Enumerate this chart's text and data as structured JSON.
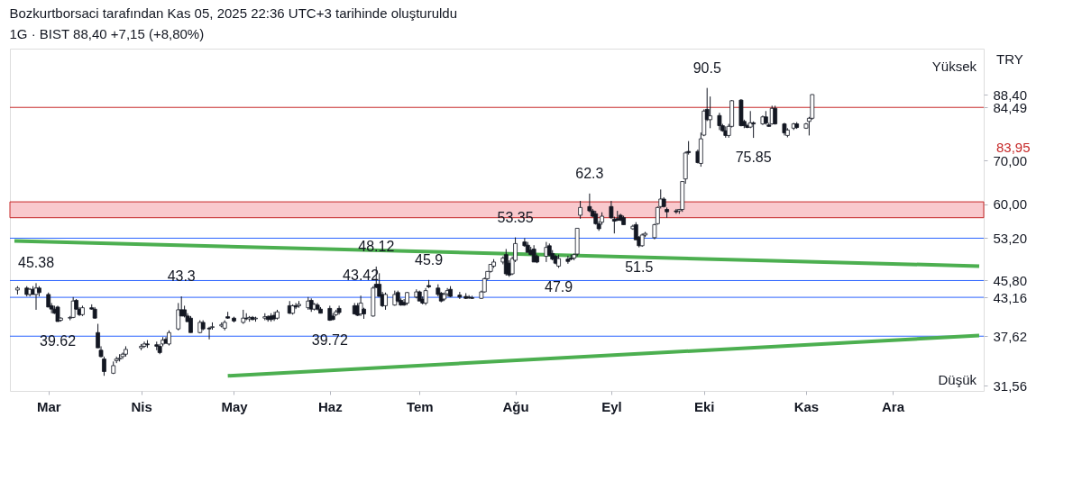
{
  "chart_data": {
    "type": "candlestick",
    "title": "Bozkurtborsaci tarafından Kas 05, 2025 22:36 UTC+3 tarihinde oluşturuldu",
    "subtitle": "1G · BIST  88,40  +7,15 (+8,80%)",
    "x": [
      "2025-02-21",
      "2025-02-24",
      "2025-02-25",
      "2025-02-26",
      "2025-02-27",
      "2025-02-28",
      "2025-03-03",
      "2025-03-04",
      "2025-03-05",
      "2025-03-06",
      "2025-03-07",
      "2025-03-10",
      "2025-03-11",
      "2025-03-12",
      "2025-03-13",
      "2025-03-14",
      "2025-03-17",
      "2025-03-18",
      "2025-03-19",
      "2025-03-20",
      "2025-03-21",
      "2025-03-24",
      "2025-03-25",
      "2025-03-26",
      "2025-03-27",
      "2025-03-28",
      "2025-04-02",
      "2025-04-03",
      "2025-04-04",
      "2025-04-07",
      "2025-04-08",
      "2025-04-09",
      "2025-04-10",
      "2025-04-11",
      "2025-04-14",
      "2025-04-15",
      "2025-04-16",
      "2025-04-17",
      "2025-04-18",
      "2025-04-21",
      "2025-04-22",
      "2025-04-24",
      "2025-04-25",
      "2025-04-28",
      "2025-04-29",
      "2025-04-30",
      "2025-05-02",
      "2025-05-05",
      "2025-05-06",
      "2025-05-07",
      "2025-05-08",
      "2025-05-09",
      "2025-05-12",
      "2025-05-13",
      "2025-05-14",
      "2025-05-15",
      "2025-05-16",
      "2025-05-20",
      "2025-05-21",
      "2025-05-22",
      "2025-05-23",
      "2025-05-26",
      "2025-05-27",
      "2025-05-28",
      "2025-05-29",
      "2025-05-30",
      "2025-06-02",
      "2025-06-03",
      "2025-06-04",
      "2025-06-05",
      "2025-06-10",
      "2025-06-11",
      "2025-06-12",
      "2025-06-13",
      "2025-06-16",
      "2025-06-17",
      "2025-06-18",
      "2025-06-19",
      "2025-06-20",
      "2025-06-23",
      "2025-06-24",
      "2025-06-25",
      "2025-06-26",
      "2025-06-27",
      "2025-06-30",
      "2025-07-01",
      "2025-07-02",
      "2025-07-03",
      "2025-07-04",
      "2025-07-07",
      "2025-07-08",
      "2025-07-09",
      "2025-07-10",
      "2025-07-11",
      "2025-07-14",
      "2025-07-16",
      "2025-07-17",
      "2025-07-18",
      "2025-07-21",
      "2025-07-22",
      "2025-07-23",
      "2025-07-24",
      "2025-07-25",
      "2025-07-28",
      "2025-07-29",
      "2025-07-30",
      "2025-07-31",
      "2025-08-01",
      "2025-08-04",
      "2025-08-05",
      "2025-08-06",
      "2025-08-07",
      "2025-08-08",
      "2025-08-11",
      "2025-08-12",
      "2025-08-13",
      "2025-08-14",
      "2025-08-15",
      "2025-08-18",
      "2025-08-19",
      "2025-08-20",
      "2025-08-21",
      "2025-08-22",
      "2025-08-25",
      "2025-08-26",
      "2025-08-27",
      "2025-08-28",
      "2025-08-29",
      "2025-09-01",
      "2025-09-02",
      "2025-09-03",
      "2025-09-04",
      "2025-09-05",
      "2025-09-08",
      "2025-09-09",
      "2025-09-10",
      "2025-09-11",
      "2025-09-12",
      "2025-09-15",
      "2025-09-16",
      "2025-09-17",
      "2025-09-18",
      "2025-09-19",
      "2025-09-22",
      "2025-09-23",
      "2025-09-24",
      "2025-09-25",
      "2025-09-26",
      "2025-09-29",
      "2025-09-30",
      "2025-10-01",
      "2025-10-02",
      "2025-10-03",
      "2025-10-06",
      "2025-10-07",
      "2025-10-08",
      "2025-10-09",
      "2025-10-10",
      "2025-10-13",
      "2025-10-14",
      "2025-10-15",
      "2025-10-16",
      "2025-10-17",
      "2025-10-20",
      "2025-10-21",
      "2025-10-22",
      "2025-10-23",
      "2025-10-24",
      "2025-10-27",
      "2025-10-28",
      "2025-10-30",
      "2025-10-31",
      "2025-11-03",
      "2025-11-04",
      "2025-11-05"
    ],
    "ohlc": [
      [
        44.3,
        44.9,
        43.6,
        44.6
      ],
      [
        44.6,
        44.9,
        43.3,
        43.6
      ],
      [
        43.6,
        44.6,
        43.3,
        44.4
      ],
      [
        44.4,
        44.9,
        43.6,
        43.6
      ],
      [
        43.6,
        45.38,
        41.3,
        44.6
      ],
      [
        44.6,
        44.9,
        43.3,
        43.9
      ],
      [
        43.6,
        43.9,
        41.7,
        41.7
      ],
      [
        41.9,
        42.3,
        40.8,
        41.4
      ],
      [
        41.4,
        41.9,
        40.7,
        40.8
      ],
      [
        41.7,
        41.9,
        39.62,
        39.62
      ],
      [
        39.8,
        40.2,
        39.6,
        40.1
      ],
      [
        40.1,
        40.4,
        39.8,
        40.2
      ],
      [
        40.2,
        43.2,
        40.1,
        42.6
      ],
      [
        42.7,
        42.9,
        41.3,
        41.4
      ],
      [
        41.4,
        41.7,
        40.4,
        40.6
      ],
      [
        40.6,
        41.9,
        40.4,
        41.6
      ],
      [
        41.6,
        42.1,
        41.3,
        41.4
      ],
      [
        41.4,
        41.7,
        40.0,
        40.1
      ],
      [
        38.1,
        39.3,
        36.1,
        36.1
      ],
      [
        35.8,
        36.3,
        34.9,
        35.0
      ],
      [
        34.7,
        35.0,
        32.7,
        33.2
      ],
      [
        33.0,
        34.4,
        32.9,
        33.9
      ],
      [
        34.5,
        35.0,
        34.2,
        34.7
      ],
      [
        34.7,
        35.3,
        34.4,
        34.8
      ],
      [
        35.0,
        35.5,
        34.7,
        35.3
      ],
      [
        35.3,
        36.3,
        35.0,
        35.9
      ],
      [
        36.1,
        36.6,
        35.8,
        36.3
      ],
      [
        36.3,
        36.9,
        36.1,
        36.6
      ],
      [
        36.6,
        37.1,
        36.1,
        36.5
      ],
      [
        36.5,
        36.9,
        35.8,
        36.3
      ],
      [
        36.3,
        36.6,
        35.3,
        35.5
      ],
      [
        36.6,
        37.5,
        36.3,
        37.1
      ],
      [
        37.2,
        37.5,
        36.6,
        36.7
      ],
      [
        36.6,
        38.4,
        36.4,
        38.1
      ],
      [
        38.6,
        42.3,
        38.4,
        41.3
      ],
      [
        41.3,
        43.3,
        40.4,
        40.4
      ],
      [
        41.3,
        41.9,
        40.2,
        40.4
      ],
      [
        40.4,
        40.8,
        39.6,
        39.6
      ],
      [
        40.1,
        40.4,
        38.1,
        38.1
      ],
      [
        38.1,
        39.8,
        38.0,
        39.5
      ],
      [
        39.5,
        39.8,
        38.4,
        38.6
      ],
      [
        38.7,
        38.9,
        37.2,
        38.6
      ],
      [
        38.8,
        39.5,
        38.5,
        38.9
      ],
      [
        39.0,
        39.5,
        38.8,
        39.2
      ],
      [
        38.7,
        39.8,
        38.4,
        39.5
      ],
      [
        40.3,
        41.0,
        40.0,
        40.1
      ],
      [
        40.1,
        40.3,
        39.5,
        39.7
      ],
      [
        39.5,
        41.3,
        39.3,
        40.1
      ],
      [
        40.1,
        40.8,
        39.8,
        40.0
      ],
      [
        40.0,
        40.4,
        39.6,
        40.2
      ],
      [
        40.2,
        40.4,
        39.8,
        39.9
      ],
      [
        40.0,
        40.3,
        39.6,
        40.1
      ],
      [
        40.1,
        40.8,
        39.8,
        40.3
      ],
      [
        40.3,
        40.5,
        39.6,
        39.9
      ],
      [
        40.4,
        40.8,
        39.6,
        39.9
      ],
      [
        40.5,
        41.0,
        39.7,
        40.0
      ],
      [
        40.1,
        41.3,
        39.9,
        41.0
      ],
      [
        41.9,
        42.6,
        40.7,
        40.8
      ],
      [
        40.8,
        42.1,
        40.6,
        41.9
      ],
      [
        41.9,
        42.3,
        41.4,
        41.7
      ],
      [
        41.9,
        42.6,
        41.6,
        42.1
      ],
      [
        41.6,
        43.2,
        41.3,
        42.6
      ],
      [
        42.7,
        43.0,
        41.0,
        41.4
      ],
      [
        41.4,
        42.3,
        41.2,
        42.1
      ],
      [
        42.0,
        42.3,
        41.2,
        41.4
      ],
      [
        41.4,
        41.7,
        40.8,
        40.8
      ],
      [
        41.5,
        41.9,
        39.72,
        39.8
      ],
      [
        40.4,
        40.8,
        39.8,
        39.9
      ],
      [
        40.6,
        41.3,
        40.4,
        41.0
      ],
      [
        41.5,
        41.9,
        40.6,
        40.9
      ],
      [
        41.9,
        42.3,
        40.6,
        40.7
      ],
      [
        41.9,
        42.3,
        40.4,
        40.5
      ],
      [
        40.7,
        43.42,
        40.4,
        42.3
      ],
      [
        41.4,
        41.6,
        40.0,
        40.7
      ],
      [
        40.4,
        44.9,
        40.3,
        44.6
      ],
      [
        45.2,
        48.12,
        44.6,
        44.7
      ],
      [
        45.2,
        47.0,
        43.3,
        43.3
      ],
      [
        43.6,
        44.0,
        41.7,
        41.9
      ],
      [
        41.9,
        43.9,
        41.3,
        43.6
      ],
      [
        42.0,
        44.2,
        41.9,
        43.6
      ],
      [
        43.9,
        44.2,
        42.4,
        42.6
      ],
      [
        42.7,
        43.0,
        41.9,
        42.0
      ],
      [
        42.4,
        42.9,
        41.9,
        42.0
      ],
      [
        42.3,
        44.0,
        42.0,
        43.9
      ],
      [
        43.2,
        44.4,
        43.0,
        44.0
      ],
      [
        44.0,
        44.2,
        42.6,
        42.6
      ],
      [
        42.9,
        43.3,
        42.1,
        42.3
      ],
      [
        42.3,
        44.6,
        42.0,
        44.2
      ],
      [
        45.0,
        45.9,
        44.6,
        44.8
      ],
      [
        44.6,
        45.2,
        43.3,
        43.6
      ],
      [
        43.8,
        44.0,
        42.4,
        42.6
      ],
      [
        42.9,
        43.9,
        42.6,
        43.6
      ],
      [
        43.7,
        44.6,
        43.3,
        44.2
      ],
      [
        44.4,
        44.9,
        43.2,
        43.3
      ],
      [
        43.5,
        44.0,
        42.9,
        43.2
      ],
      [
        43.3,
        43.8,
        42.9,
        43.0
      ],
      [
        43.2,
        43.5,
        42.9,
        43.1
      ],
      [
        43.1,
        43.4,
        42.9,
        43.0
      ],
      [
        43.0,
        44.2,
        42.9,
        44.0
      ],
      [
        44.0,
        46.3,
        43.9,
        46.1
      ],
      [
        46.1,
        47.3,
        45.9,
        47.3
      ],
      [
        47.3,
        48.5,
        47.1,
        48.5
      ],
      [
        48.2,
        49.4,
        47.9,
        48.9
      ],
      [
        48.9,
        49.9,
        48.5,
        49.6
      ],
      [
        50.2,
        51.2,
        46.6,
        46.9
      ],
      [
        48.7,
        49.2,
        46.4,
        46.7
      ],
      [
        46.9,
        49.9,
        46.7,
        49.5
      ],
      [
        49.2,
        53.35,
        48.9,
        52.2
      ],
      [
        52.5,
        53.2,
        51.6,
        51.8
      ],
      [
        51.9,
        52.5,
        50.6,
        50.6
      ],
      [
        51.0,
        51.6,
        50.1,
        50.2
      ],
      [
        51.2,
        51.9,
        48.9,
        48.9
      ],
      [
        49.9,
        50.2,
        48.7,
        48.9
      ],
      [
        49.9,
        52.5,
        48.9,
        51.5
      ],
      [
        51.8,
        52.2,
        49.9,
        50.1
      ],
      [
        50.4,
        51.0,
        49.2,
        49.4
      ],
      [
        49.9,
        50.2,
        48.5,
        48.7
      ],
      [
        48.2,
        50.2,
        47.9,
        49.5
      ],
      [
        49.4,
        50.0,
        48.6,
        49.0
      ],
      [
        49.6,
        50.2,
        49.2,
        49.4
      ],
      [
        49.6,
        50.4,
        49.2,
        50.2
      ],
      [
        50.3,
        55.1,
        49.9,
        55.1
      ],
      [
        57.7,
        60.7,
        57.0,
        59.3
      ],
      [
        59.5,
        62.3,
        58.3,
        58.6
      ],
      [
        58.6,
        59.0,
        57.3,
        57.5
      ],
      [
        58.0,
        58.6,
        55.8,
        56.0
      ],
      [
        56.0,
        56.5,
        54.6,
        55.0
      ],
      [
        56.3,
        58.3,
        55.8,
        57.5
      ],
      [
        59.5,
        60.7,
        57.0,
        57.2
      ],
      [
        56.9,
        57.4,
        54.1,
        56.5
      ],
      [
        57.0,
        58.6,
        56.5,
        56.7
      ],
      [
        57.7,
        58.0,
        56.5,
        56.7
      ],
      [
        57.2,
        57.6,
        55.8,
        55.8
      ],
      [
        55.0,
        55.8,
        54.8,
        55.5
      ],
      [
        55.8,
        56.3,
        52.9,
        52.9
      ],
      [
        53.4,
        53.6,
        51.5,
        51.8
      ],
      [
        51.8,
        54.1,
        51.6,
        53.8
      ],
      [
        53.8,
        54.4,
        53.4,
        54.1
      ],
      [
        53.3,
        56.0,
        53.0,
        55.8
      ],
      [
        56.0,
        59.5,
        55.8,
        59.3
      ],
      [
        59.5,
        63.2,
        59.1,
        61.1
      ],
      [
        61.1,
        61.5,
        59.3,
        59.5
      ],
      [
        58.9,
        59.3,
        57.2,
        58.4
      ],
      [
        58.6,
        59.0,
        58.0,
        58.4
      ],
      [
        58.6,
        59.0,
        58.0,
        58.9
      ],
      [
        58.9,
        65.0,
        58.4,
        65.0
      ],
      [
        65.6,
        72.3,
        64.5,
        71.9
      ],
      [
        72.3,
        75.0,
        71.5,
        72.0
      ],
      [
        72.3,
        72.8,
        69.3,
        69.5
      ],
      [
        69.3,
        77.3,
        68.5,
        75.6
      ],
      [
        76.6,
        83.9,
        76.3,
        83.4
      ],
      [
        83.9,
        90.5,
        80.5,
        80.9
      ],
      [
        80.9,
        87.8,
        78.5,
        82.0
      ],
      [
        82.1,
        82.9,
        78.0,
        79.2
      ],
      [
        79.2,
        79.7,
        77.5,
        77.8
      ],
      [
        77.8,
        79.0,
        75.9,
        76.5
      ],
      [
        76.5,
        79.7,
        75.9,
        79.0
      ],
      [
        79.0,
        86.7,
        78.7,
        86.5
      ],
      [
        86.7,
        87.0,
        79.0,
        79.2
      ],
      [
        80.4,
        80.9,
        78.5,
        79.2
      ],
      [
        79.2,
        79.7,
        78.5,
        78.7
      ],
      [
        78.8,
        83.4,
        78.5,
        80.0
      ],
      [
        80.0,
        80.4,
        75.85,
        79.7
      ],
      [
        79.7,
        82.1,
        79.4,
        81.7
      ],
      [
        81.7,
        83.4,
        79.5,
        79.9
      ],
      [
        79.4,
        80.0,
        78.9,
        79.0
      ],
      [
        79.7,
        85.0,
        79.5,
        84.2
      ],
      [
        84.2,
        85.0,
        79.5,
        79.7
      ],
      [
        79.7,
        80.0,
        76.5,
        77.2
      ],
      [
        76.5,
        78.5,
        76.0,
        78.0
      ],
      [
        78.5,
        80.0,
        78.0,
        79.7
      ],
      [
        79.7,
        80.2,
        78.3,
        78.7
      ],
      [
        78.5,
        80.0,
        78.3,
        79.7
      ],
      [
        80.4,
        81.7,
        76.5,
        81.3
      ],
      [
        81.3,
        88.5,
        80.9,
        88.4
      ]
    ],
    "xlim": [
      "2025-02-20",
      "2025-12-29"
    ],
    "xticks": [
      {
        "value": "2025-03-03",
        "label": "Mar"
      },
      {
        "value": "2025-04-02",
        "label": "Nis"
      },
      {
        "value": "2025-05-02",
        "label": "May"
      },
      {
        "value": "2025-06-02",
        "label": "Haz"
      },
      {
        "value": "2025-07-01",
        "label": "Tem"
      },
      {
        "value": "2025-08-01",
        "label": "Ağu"
      },
      {
        "value": "2025-09-01",
        "label": "Eyl"
      },
      {
        "value": "2025-10-01",
        "label": "Eki"
      },
      {
        "value": "2025-11-03",
        "label": "Kas"
      },
      {
        "value": "2025-12-01",
        "label": "Ara"
      }
    ],
    "ylim": [
      31,
      104
    ],
    "log": true,
    "grid": false,
    "yticks": [
      {
        "value": 88.4,
        "label": "88,40"
      },
      {
        "value": 84.49,
        "label": "84,49"
      },
      {
        "value": 70,
        "label": "70,00"
      },
      {
        "value": 60,
        "label": "60,00"
      },
      {
        "value": 53.2,
        "label": "53,20"
      },
      {
        "value": 45.8,
        "label": "45,80"
      },
      {
        "value": 43.16,
        "label": "43,16"
      },
      {
        "value": 37.62,
        "label": "37,62"
      },
      {
        "value": 31.56,
        "label": "31,56"
      }
    ],
    "series": [
      {
        "type": "line",
        "color": "#4caf50",
        "x": [
          "2025-02-20",
          "2025-12-29"
        ],
        "values": [
          52.7,
          48.2
        ]
      },
      {
        "type": "line",
        "color": "#4caf50",
        "x": [
          "2025-04-30",
          "2025-12-29"
        ],
        "values": [
          32.7,
          37.7
        ]
      }
    ],
    "ref_lines": [
      {
        "axis": "y",
        "value": 84.49,
        "color": "#c62828"
      },
      {
        "axis": "y",
        "value": 53.2,
        "color": "#2962ff"
      },
      {
        "axis": "y",
        "value": 45.8,
        "color": "#2962ff"
      },
      {
        "axis": "y",
        "value": 43.16,
        "color": "#2962ff"
      },
      {
        "axis": "y",
        "value": 37.62,
        "color": "#2962ff"
      }
    ],
    "bands": [
      {
        "axis": "y",
        "from": 57.2,
        "to": 60.5,
        "color": "#f9c9cd"
      }
    ],
    "annotations": [
      "TRY",
      "Yüksek",
      "83,95",
      "Düşük",
      {
        "text": "90.5",
        "x": "2025-10-02",
        "y": 90.5
      },
      {
        "text": "62.3",
        "x": "2025-08-25",
        "y": 62.3
      },
      {
        "text": "53.35",
        "x": "2025-08-01",
        "y": 53.35
      },
      {
        "text": "48.12",
        "x": "2025-06-17",
        "y": 48.12
      },
      {
        "text": "45.38",
        "x": "2025-02-27",
        "y": 45.38
      },
      {
        "text": "43.3",
        "x": "2025-04-15",
        "y": 43.3
      },
      {
        "text": "43.42",
        "x": "2025-06-12",
        "y": 43.42
      },
      {
        "text": "45.9",
        "x": "2025-07-04",
        "y": 45.9
      },
      {
        "text": "47.9",
        "x": "2025-08-15",
        "y": 47.9
      },
      {
        "text": "51.5",
        "x": "2025-09-10",
        "y": 51.5
      },
      {
        "text": "39.62",
        "x": "2025-03-06",
        "y": 39.62
      },
      {
        "text": "39.72",
        "x": "2025-06-02",
        "y": 39.72
      },
      {
        "text": "75.85",
        "x": "2025-10-17",
        "y": 75.85
      }
    ]
  }
}
